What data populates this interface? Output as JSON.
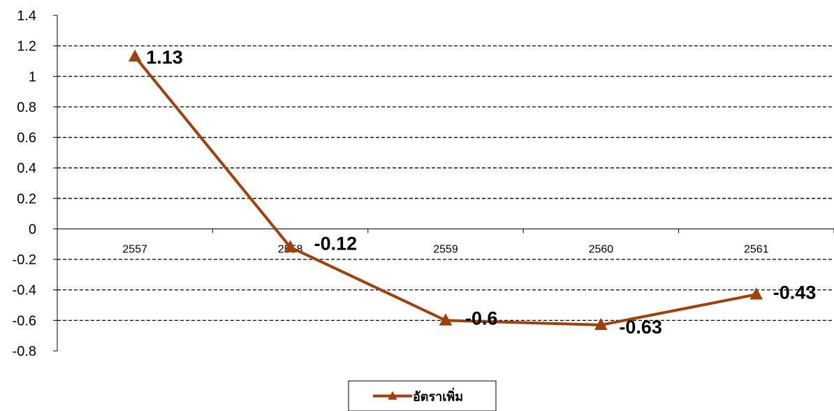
{
  "chart_data": {
    "type": "line",
    "title": "",
    "xlabel": "",
    "ylabel": "",
    "categories": [
      "2557",
      "2558",
      "2559",
      "2560",
      "2561"
    ],
    "series": [
      {
        "name": "อัตราเพิ่ม",
        "values": [
          1.13,
          -0.12,
          -0.6,
          -0.63,
          -0.43
        ],
        "data_labels": [
          "1.13",
          "-0.12",
          "-0.6",
          "-0.63",
          "-0.43"
        ],
        "color": "#A0400A",
        "marker": "triangle"
      }
    ],
    "ylim": [
      -0.8,
      1.4
    ],
    "y_ticks": [
      "1.4",
      "1.2",
      "1",
      "0.8",
      "0.6",
      "0.4",
      "0.2",
      "0",
      "-0.2",
      "-0.4",
      "-0.6",
      "-0.8"
    ],
    "grid": "horizontal dashed",
    "legend_position": "bottom-center"
  }
}
